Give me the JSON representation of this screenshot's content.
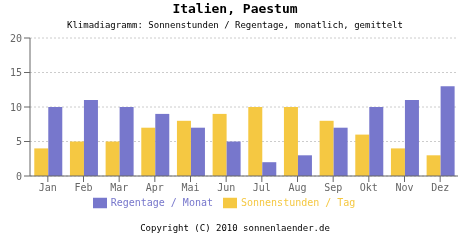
{
  "chart_data": {
    "type": "bar",
    "title": "Italien, Paestum",
    "subtitle": "Klimadiagramm: Sonnenstunden / Regentage, monatlich, gemittelt",
    "categories": [
      "Jan",
      "Feb",
      "Mar",
      "Apr",
      "Mai",
      "Jun",
      "Jul",
      "Aug",
      "Sep",
      "Okt",
      "Nov",
      "Dez"
    ],
    "series": [
      {
        "name": "Sonnenstunden / Tag",
        "color": "#F5C842",
        "values": [
          4,
          5,
          5,
          7,
          8,
          9,
          10,
          10,
          8,
          6,
          4,
          3
        ]
      },
      {
        "name": "Regentage / Monat",
        "color": "#7777CC",
        "values": [
          10,
          11,
          10,
          9,
          7,
          5,
          2,
          3,
          7,
          10,
          11,
          13
        ]
      }
    ],
    "ylim": [
      0,
      20
    ],
    "yticks": [
      0,
      5,
      10,
      15,
      20
    ],
    "grid": true,
    "legend": "bottom",
    "annotations": [
      "Copyright (C) 2010 sonnenlaender.de"
    ]
  }
}
